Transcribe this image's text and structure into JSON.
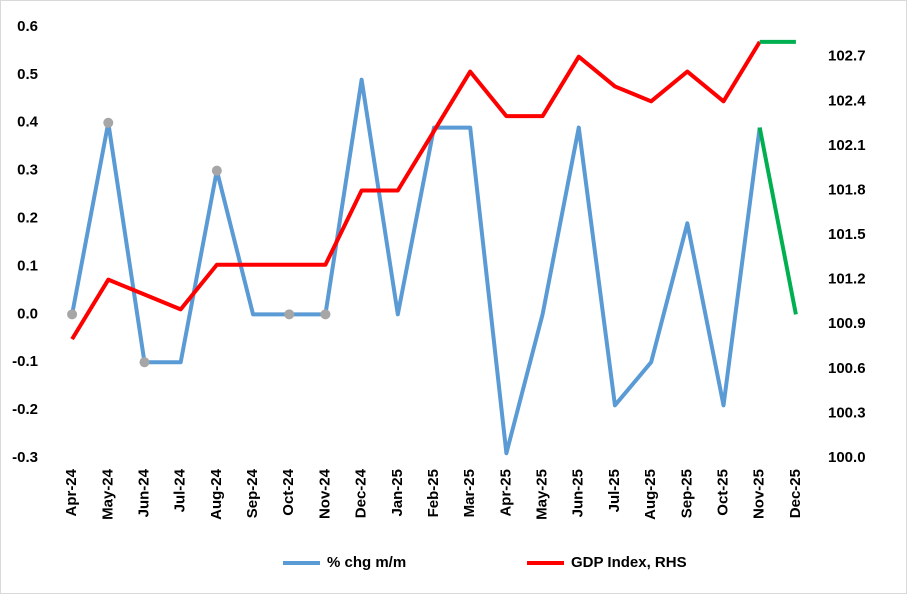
{
  "chart_data": {
    "type": "line",
    "categories": [
      "Apr-24",
      "May-24",
      "Jun-24",
      "Jul-24",
      "Aug-24",
      "Sep-24",
      "Oct-24",
      "Nov-24",
      "Dec-24",
      "Jan-25",
      "Feb-25",
      "Mar-25",
      "Apr-25",
      "May-25",
      "Jun-25",
      "Jul-25",
      "Aug-25",
      "Sep-25",
      "Oct-25",
      "Nov-25",
      "Dec-25"
    ],
    "series": [
      {
        "name": "% chg m/m",
        "color": "#5b9bd5",
        "forecast_color": "#00b050",
        "forecast_from": 19,
        "marker_color": "#a6a6a6",
        "markers": [
          true,
          true,
          true,
          false,
          true,
          false,
          true,
          true,
          false,
          false,
          false,
          false,
          false,
          false,
          false,
          false,
          false,
          false,
          false,
          false,
          false
        ],
        "values": [
          0.0,
          0.4,
          -0.1,
          -0.1,
          0.3,
          0.0,
          0.0,
          0.0,
          0.49,
          0.0,
          0.39,
          0.39,
          -0.29,
          0.0,
          0.39,
          -0.19,
          -0.1,
          0.19,
          -0.19,
          0.39,
          0.0
        ]
      },
      {
        "name": "GDP Index, RHS",
        "color": "#ff0000",
        "forecast_color": "#00b050",
        "forecast_from": 19,
        "axis": "y2",
        "values": [
          100.8,
          101.2,
          101.1,
          101.0,
          101.3,
          101.3,
          101.3,
          101.3,
          101.8,
          101.8,
          102.2,
          102.6,
          102.3,
          102.3,
          102.7,
          102.5,
          102.4,
          102.6,
          102.4,
          102.8,
          102.8
        ]
      }
    ],
    "ylim": [
      -0.3,
      0.6
    ],
    "yticks": [
      -0.3,
      -0.2,
      -0.1,
      {
        "value": 0,
        "label": "0.0"
      },
      0.1,
      0.2,
      0.3,
      0.4,
      0.5,
      0.6
    ],
    "y2lim": [
      100.0,
      102.9
    ],
    "y2ticks": [
      {
        "value": 100,
        "label": "100.0"
      },
      100.3,
      100.6,
      100.9,
      101.2,
      101.5,
      101.8,
      102.1,
      102.4,
      102.7
    ]
  }
}
